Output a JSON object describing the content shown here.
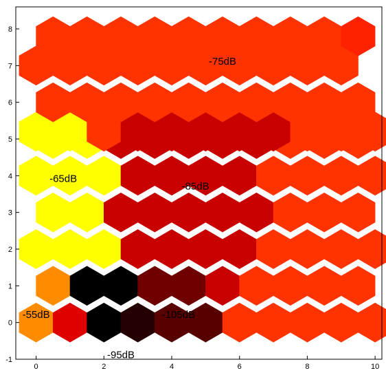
{
  "chart_data": {
    "type": "heatmap",
    "title": "",
    "xlabel": "",
    "ylabel": "",
    "xlim": [
      -0.6,
      10.2
    ],
    "ylim": [
      -1,
      8.6
    ],
    "x_ticks": [
      "0",
      "2",
      "4",
      "6",
      "8",
      "10"
    ],
    "y_ticks": [
      "-1",
      "0",
      "1",
      "2",
      "3",
      "4",
      "5",
      "6",
      "7",
      "8"
    ],
    "grid": false,
    "legend": "none",
    "cell_shape": "hexagon",
    "colors": {
      "orange": "#ff8c00",
      "red": "#e00000",
      "yellow": "#ffff00",
      "orange_red": "#ff3300",
      "bright_red": "#ff2200",
      "dark_red": "#c80000",
      "maroon": "#700000",
      "dark_maroon": "#580000",
      "near_black": "#240000",
      "black": "#000000"
    },
    "rows": [
      {
        "y": 0,
        "x_start": 0,
        "cells": [
          "orange",
          "red",
          "black",
          "near_black",
          "dark_maroon",
          "dark_maroon",
          "orange_red",
          "orange_red",
          "orange_red",
          "orange_red",
          "orange_red"
        ]
      },
      {
        "y": 1,
        "x_start": 0.5,
        "cells": [
          "orange",
          "black",
          "black",
          "maroon",
          "maroon",
          "dark_red",
          "orange_red",
          "orange_red",
          "orange_red",
          "orange_red"
        ]
      },
      {
        "y": 2,
        "x_start": 0,
        "cells": [
          "yellow",
          "yellow",
          "yellow",
          "dark_red",
          "dark_red",
          "dark_red",
          "dark_red",
          "orange_red",
          "orange_red",
          "orange_red",
          "orange_red"
        ]
      },
      {
        "y": 3,
        "x_start": 0.5,
        "cells": [
          "yellow",
          "yellow",
          "dark_red",
          "dark_red",
          "dark_red",
          "dark_red",
          "dark_red",
          "orange_red",
          "orange_red",
          "orange_red"
        ]
      },
      {
        "y": 4,
        "x_start": 0,
        "cells": [
          "yellow",
          "yellow",
          "yellow",
          "dark_red",
          "dark_red",
          "dark_red",
          "dark_red",
          "orange_red",
          "orange_red",
          "orange_red",
          "orange_red"
        ]
      },
      {
        "y": 5,
        "x_start": 0.5,
        "cells": [
          "yellow",
          "yellow",
          "dark_red",
          "dark_red",
          "dark_red",
          "dark_red",
          "dark_red",
          "orange_red",
          "orange_red",
          "orange_red"
        ]
      },
      {
        "y": 5.2,
        "x_start": 0,
        "cells": [
          "yellow",
          "yellow",
          "orange_red",
          "dark_red",
          "dark_red",
          "dark_red",
          "dark_red",
          "dark_red",
          "orange_red",
          "orange_red",
          "orange_red"
        ]
      },
      {
        "y": 6,
        "x_start": 0.5,
        "cells": [
          "orange_red",
          "orange_red",
          "orange_red",
          "orange_red",
          "orange_red",
          "orange_red",
          "orange_red",
          "orange_red",
          "orange_red",
          "orange_red"
        ]
      },
      {
        "y": 7,
        "x_start": 0,
        "cells": [
          "orange_red",
          "orange_red",
          "orange_red",
          "orange_red",
          "orange_red",
          "orange_red",
          "orange_red",
          "orange_red",
          "orange_red",
          "orange_red"
        ]
      },
      {
        "y": 7.8,
        "x_start": 0.5,
        "cells": [
          "orange_red",
          "orange_red",
          "orange_red",
          "orange_red",
          "orange_red",
          "orange_red",
          "orange_red",
          "orange_red",
          "orange_red",
          "bright_red"
        ]
      }
    ],
    "annotations": [
      {
        "text": "-75dB",
        "x": 5.5,
        "y": 7.1
      },
      {
        "text": "-65dB",
        "x": 0.8,
        "y": 3.9
      },
      {
        "text": "-85dB",
        "x": 4.7,
        "y": 3.7
      },
      {
        "text": "-55dB",
        "x": 0.0,
        "y": 0.2
      },
      {
        "text": "-105dB",
        "x": 4.2,
        "y": 0.2
      },
      {
        "text": "-95dB",
        "x": 2.5,
        "y": -0.9
      }
    ]
  }
}
